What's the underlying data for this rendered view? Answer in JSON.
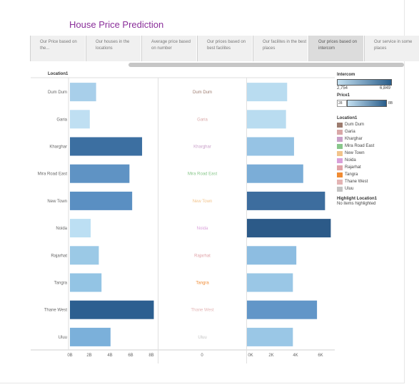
{
  "title": "House Price Prediction",
  "tabs": [
    {
      "label": "Our Price based on the...",
      "active": false
    },
    {
      "label": "Our houses in the locations",
      "active": false
    },
    {
      "label": "Average price based on number",
      "active": false
    },
    {
      "label": "Our prices based on best facilites",
      "active": false
    },
    {
      "label": "Our facilites in the best places",
      "active": false
    },
    {
      "label": "Our prices based on intercom",
      "active": true
    },
    {
      "label": "Our service in some places",
      "active": false
    }
  ],
  "row_header": "Location1",
  "locations": [
    "Dum Dum",
    "Garia",
    "Kharghar",
    "Mira Road East",
    "New Town",
    "Noida",
    "Rajarhat",
    "Tangra",
    "Thane West",
    "Uluu"
  ],
  "location_colors": [
    "#9c7b6e",
    "#d9a7a7",
    "#c9a0c9",
    "#88c78b",
    "#f2c48c",
    "#d9a0d9",
    "#e0a3a8",
    "#f08b33",
    "#e3b4b4",
    "#c3c3c3"
  ],
  "chart_data": [
    {
      "type": "bar",
      "orientation": "horizontal",
      "categories": [
        "Dum Dum",
        "Garia",
        "Kharghar",
        "Mira Road East",
        "New Town",
        "Noida",
        "Rajarhat",
        "Tangra",
        "Thane West",
        "Uluu"
      ],
      "values": [
        2.9,
        2.2,
        8.0,
        6.6,
        6.9,
        2.3,
        3.2,
        3.5,
        9.3,
        4.5
      ],
      "colors": [
        "#a8cfea",
        "#bfdff2",
        "#3c6fa1",
        "#5f93c4",
        "#5a8fc2",
        "#bcdff3",
        "#9bc9e6",
        "#93c4e4",
        "#2c5f90",
        "#7bb0da"
      ],
      "axis_ticks": [
        "0B",
        "2B",
        "4B",
        "6B",
        "8B"
      ],
      "xlim": [
        0,
        9.5
      ]
    },
    {
      "type": "table",
      "categories": [
        "Dum Dum",
        "Garia",
        "Kharghar",
        "Mira Road East",
        "New Town",
        "Noida",
        "Rajarhat",
        "Tangra",
        "Thane West",
        "Uluu"
      ],
      "axis_ticks": [
        "0"
      ]
    },
    {
      "type": "bar",
      "orientation": "horizontal",
      "categories": [
        "Dum Dum",
        "Garia",
        "Kharghar",
        "Mira Road East",
        "New Town",
        "Noida",
        "Rajarhat",
        "Tangra",
        "Thane West",
        "Uluu"
      ],
      "values": [
        3500,
        3400,
        4100,
        4900,
        6800,
        7300,
        4300,
        4000,
        6100,
        4000
      ],
      "colors": [
        "#b9dcf0",
        "#b9dcf0",
        "#96c3e4",
        "#7badd7",
        "#3d6d9e",
        "#2c5a88",
        "#8dbde1",
        "#9ac7e6",
        "#6296c8",
        "#9ac7e6"
      ],
      "axis_ticks": [
        "0K",
        "2K",
        "4K",
        "6K"
      ],
      "xlim": [
        0,
        7400
      ]
    }
  ],
  "legend": {
    "intercom_title": "Intercom",
    "intercom_min": "2,754",
    "intercom_max": "6,849",
    "price_title": "Price1",
    "price_min": "28",
    "price_max": "8B",
    "location_title": "Location1",
    "highlight_title": "Highlight Location1",
    "highlight_text": "No items highlighted"
  }
}
